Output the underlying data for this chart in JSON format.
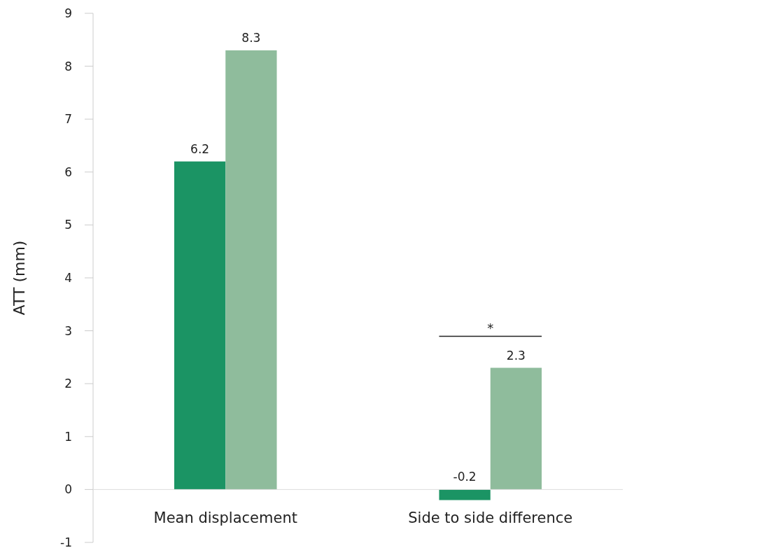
{
  "chart_data": {
    "type": "bar",
    "ylabel": "ATT (mm)",
    "categories": [
      "Mean displacement",
      "Side to side difference"
    ],
    "series": [
      {
        "color": "#1b9464",
        "values": [
          6.2,
          -0.2
        ]
      },
      {
        "color": "#8fbc9c",
        "values": [
          8.3,
          2.3
        ]
      }
    ],
    "ylim": [
      -1,
      9
    ],
    "yticks": [
      -1,
      0,
      1,
      2,
      3,
      4,
      5,
      6,
      7,
      8,
      9
    ],
    "data_labels": true,
    "grid": false,
    "annotations": [
      "*"
    ]
  }
}
